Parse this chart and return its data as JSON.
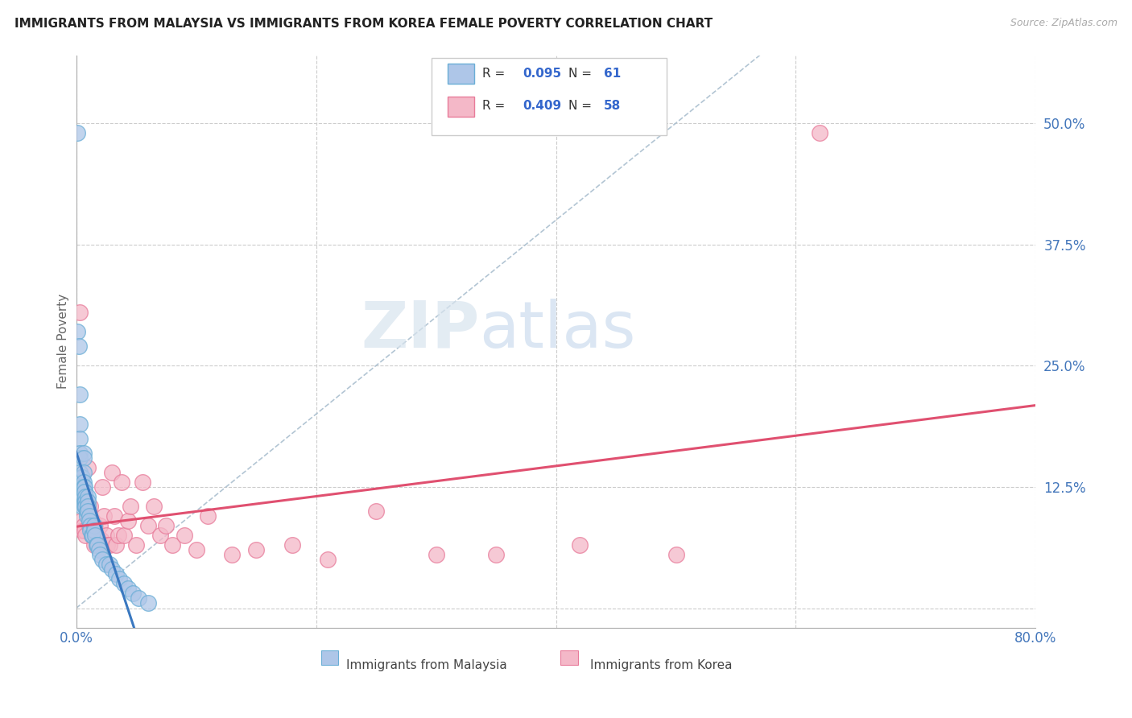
{
  "title": "IMMIGRANTS FROM MALAYSIA VS IMMIGRANTS FROM KOREA FEMALE POVERTY CORRELATION CHART",
  "source": "Source: ZipAtlas.com",
  "ylabel": "Female Poverty",
  "xlim": [
    0.0,
    0.8
  ],
  "ylim": [
    -0.02,
    0.57
  ],
  "malaysia_color": "#aec6e8",
  "korea_color": "#f4b8c8",
  "malaysia_edge_color": "#6aaed6",
  "korea_edge_color": "#e87b9a",
  "regression_malaysia_color": "#3a78c0",
  "regression_korea_color": "#e05070",
  "diagonal_color": "#aabfcf",
  "watermark_zip": "ZIP",
  "watermark_atlas": "atlas",
  "malaysia_x": [
    0.001,
    0.001,
    0.002,
    0.003,
    0.003,
    0.003,
    0.003,
    0.003,
    0.003,
    0.004,
    0.004,
    0.004,
    0.004,
    0.005,
    0.005,
    0.005,
    0.005,
    0.005,
    0.006,
    0.006,
    0.006,
    0.006,
    0.006,
    0.006,
    0.007,
    0.007,
    0.007,
    0.007,
    0.008,
    0.008,
    0.008,
    0.009,
    0.009,
    0.01,
    0.01,
    0.01,
    0.01,
    0.011,
    0.011,
    0.012,
    0.012,
    0.013,
    0.014,
    0.015,
    0.015,
    0.016,
    0.017,
    0.018,
    0.019,
    0.02,
    0.022,
    0.025,
    0.028,
    0.03,
    0.033,
    0.036,
    0.04,
    0.043,
    0.047,
    0.052,
    0.06
  ],
  "malaysia_y": [
    0.49,
    0.285,
    0.27,
    0.22,
    0.19,
    0.175,
    0.16,
    0.155,
    0.14,
    0.135,
    0.135,
    0.13,
    0.125,
    0.135,
    0.125,
    0.12,
    0.115,
    0.105,
    0.16,
    0.155,
    0.14,
    0.13,
    0.125,
    0.115,
    0.125,
    0.12,
    0.11,
    0.105,
    0.115,
    0.11,
    0.105,
    0.1,
    0.095,
    0.115,
    0.11,
    0.105,
    0.1,
    0.095,
    0.09,
    0.085,
    0.08,
    0.075,
    0.075,
    0.085,
    0.08,
    0.075,
    0.065,
    0.065,
    0.06,
    0.055,
    0.05,
    0.045,
    0.045,
    0.04,
    0.035,
    0.03,
    0.025,
    0.02,
    0.015,
    0.01,
    0.005
  ],
  "korea_x": [
    0.003,
    0.004,
    0.004,
    0.005,
    0.005,
    0.006,
    0.006,
    0.007,
    0.007,
    0.008,
    0.008,
    0.009,
    0.01,
    0.01,
    0.011,
    0.012,
    0.013,
    0.014,
    0.015,
    0.016,
    0.017,
    0.018,
    0.019,
    0.02,
    0.021,
    0.022,
    0.023,
    0.025,
    0.026,
    0.028,
    0.03,
    0.032,
    0.033,
    0.035,
    0.038,
    0.04,
    0.043,
    0.045,
    0.05,
    0.055,
    0.06,
    0.065,
    0.07,
    0.075,
    0.08,
    0.09,
    0.1,
    0.11,
    0.13,
    0.15,
    0.18,
    0.21,
    0.25,
    0.3,
    0.35,
    0.42,
    0.5,
    0.62
  ],
  "korea_y": [
    0.305,
    0.12,
    0.09,
    0.115,
    0.08,
    0.115,
    0.085,
    0.11,
    0.08,
    0.105,
    0.075,
    0.1,
    0.145,
    0.105,
    0.085,
    0.105,
    0.075,
    0.09,
    0.065,
    0.085,
    0.065,
    0.075,
    0.065,
    0.085,
    0.07,
    0.125,
    0.095,
    0.075,
    0.065,
    0.065,
    0.14,
    0.095,
    0.065,
    0.075,
    0.13,
    0.075,
    0.09,
    0.105,
    0.065,
    0.13,
    0.085,
    0.105,
    0.075,
    0.085,
    0.065,
    0.075,
    0.06,
    0.095,
    0.055,
    0.06,
    0.065,
    0.05,
    0.1,
    0.055,
    0.055,
    0.065,
    0.055,
    0.49
  ]
}
